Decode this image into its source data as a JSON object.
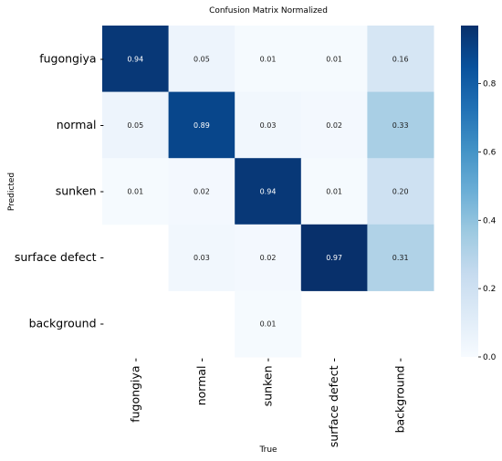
{
  "chart_data": {
    "type": "heatmap",
    "title": "Confusion Matrix Normalized",
    "xlabel": "True",
    "ylabel": "Predicted",
    "x_categories": [
      "fugongiya",
      "normal",
      "sunken",
      "surface defect",
      "background"
    ],
    "y_categories": [
      "fugongiya",
      "normal",
      "sunken",
      "surface defect",
      "background"
    ],
    "values": [
      [
        0.94,
        0.05,
        0.01,
        0.01,
        0.16
      ],
      [
        0.05,
        0.89,
        0.03,
        0.02,
        0.33
      ],
      [
        0.01,
        0.02,
        0.94,
        0.01,
        0.2
      ],
      [
        null,
        0.03,
        0.02,
        0.97,
        0.31
      ],
      [
        null,
        null,
        0.01,
        null,
        null
      ]
    ],
    "value_labels": [
      [
        "0.94",
        "0.05",
        "0.01",
        "0.01",
        "0.16"
      ],
      [
        "0.05",
        "0.89",
        "0.03",
        "0.02",
        "0.33"
      ],
      [
        "0.01",
        "0.02",
        "0.94",
        "0.01",
        "0.20"
      ],
      [
        "",
        "0.03",
        "0.02",
        "0.97",
        "0.31"
      ],
      [
        "",
        "",
        "0.01",
        "",
        ""
      ]
    ],
    "colormap": "Blues",
    "vmin": 0,
    "vmax": 0.97,
    "colorbar_ticks": [
      0.0,
      0.2,
      0.4,
      0.6,
      0.8
    ],
    "colorbar_tick_labels": [
      "0.0",
      "0.2",
      "0.4",
      "0.6",
      "0.8"
    ]
  }
}
